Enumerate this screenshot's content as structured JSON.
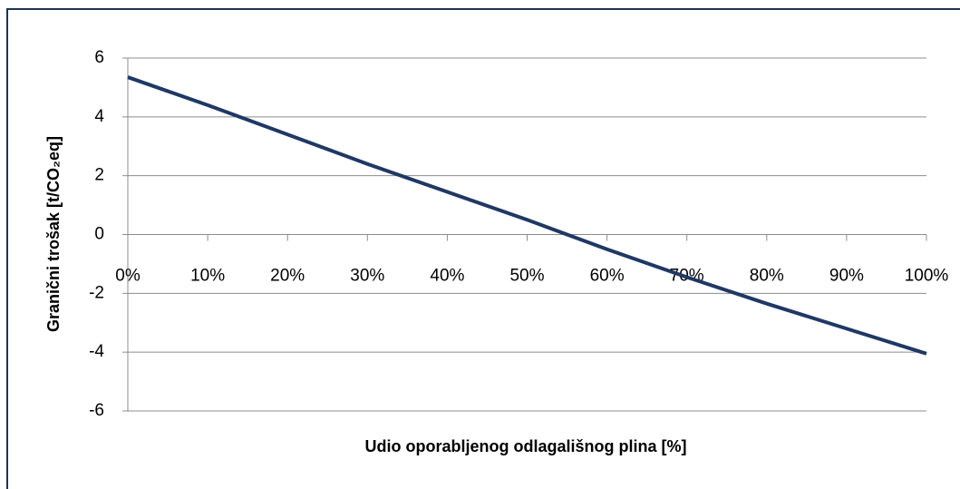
{
  "chart_data": {
    "type": "line",
    "x_label": "Udio oporabljenog odlagališnog plina [%]",
    "y_label": "Granični trošak [t/CO₂eq]",
    "x": [
      0,
      10,
      20,
      30,
      40,
      50,
      60,
      70,
      80,
      90,
      100
    ],
    "series": [
      {
        "color": "#1f3864",
        "values": [
          5.35,
          4.4,
          3.4,
          2.4,
          1.45,
          0.5,
          -0.5,
          -1.45,
          -2.35,
          -3.2,
          -4.05
        ]
      }
    ],
    "xlim": [
      0,
      100
    ],
    "xticks": [
      {
        "value": 0,
        "label": "0%"
      },
      {
        "value": 10,
        "label": "10%"
      },
      {
        "value": 20,
        "label": "20%"
      },
      {
        "value": 30,
        "label": "30%"
      },
      {
        "value": 40,
        "label": "40%"
      },
      {
        "value": 50,
        "label": "50%"
      },
      {
        "value": 60,
        "label": "60%"
      },
      {
        "value": 70,
        "label": "70%"
      },
      {
        "value": 80,
        "label": "80%"
      },
      {
        "value": 90,
        "label": "90%"
      },
      {
        "value": 100,
        "label": "100%"
      }
    ],
    "ylim": [
      -6,
      6
    ],
    "yticks": [
      -6,
      -4,
      -2,
      0,
      2,
      4,
      6
    ],
    "grid": true
  }
}
